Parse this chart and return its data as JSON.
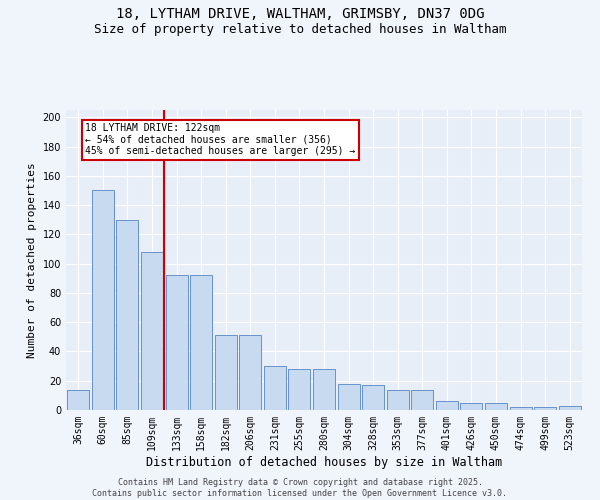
{
  "title_line1": "18, LYTHAM DRIVE, WALTHAM, GRIMSBY, DN37 0DG",
  "title_line2": "Size of property relative to detached houses in Waltham",
  "xlabel": "Distribution of detached houses by size in Waltham",
  "ylabel": "Number of detached properties",
  "categories": [
    "36sqm",
    "60sqm",
    "85sqm",
    "109sqm",
    "133sqm",
    "158sqm",
    "182sqm",
    "206sqm",
    "231sqm",
    "255sqm",
    "280sqm",
    "304sqm",
    "328sqm",
    "353sqm",
    "377sqm",
    "401sqm",
    "426sqm",
    "450sqm",
    "474sqm",
    "499sqm",
    "523sqm"
  ],
  "values": [
    14,
    150,
    130,
    108,
    92,
    92,
    51,
    51,
    30,
    28,
    28,
    18,
    17,
    14,
    14,
    6,
    5,
    5,
    2,
    2,
    3
  ],
  "bar_color": "#c8daf0",
  "bar_edge_color": "#5585c5",
  "property_line_color": "#cc0000",
  "annotation_text": "18 LYTHAM DRIVE: 122sqm\n← 54% of detached houses are smaller (356)\n45% of semi-detached houses are larger (295) →",
  "annotation_box_facecolor": "#ffffff",
  "annotation_box_edgecolor": "#cc0000",
  "ylim": [
    0,
    205
  ],
  "yticks": [
    0,
    20,
    40,
    60,
    80,
    100,
    120,
    140,
    160,
    180,
    200
  ],
  "bg_color": "#e8eef8",
  "grid_color": "#ffffff",
  "footer_text": "Contains HM Land Registry data © Crown copyright and database right 2025.\nContains public sector information licensed under the Open Government Licence v3.0.",
  "title_fontsize": 10,
  "subtitle_fontsize": 9,
  "tick_fontsize": 7,
  "label_fontsize": 8.5,
  "ylabel_fontsize": 8,
  "footer_fontsize": 6
}
